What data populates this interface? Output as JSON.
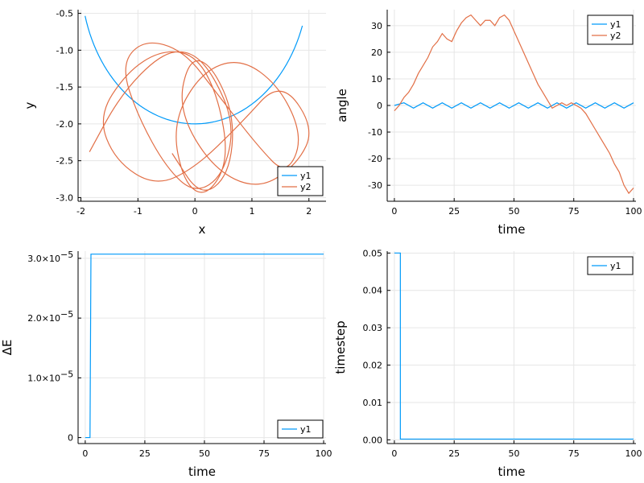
{
  "chart_data": [
    {
      "type": "line",
      "xlabel": "x",
      "ylabel": "y",
      "xlim": [
        -2.05,
        2.3
      ],
      "ylim": [
        -3.05,
        -0.45
      ],
      "xticks": [
        -2,
        -1,
        0,
        1,
        2
      ],
      "yticks": [
        -3.0,
        -2.5,
        -2.0,
        -1.5,
        -1.0,
        -0.5
      ],
      "xtick_labels": [
        "-2",
        "-1",
        "0",
        "1",
        "2"
      ],
      "ytick_labels": [
        "-3.0",
        "-2.5",
        "-2.0",
        "-1.5",
        "-1.0",
        "-0.5"
      ],
      "grid": true,
      "legend": "bottom-right",
      "series": [
        {
          "name": "y1",
          "color": "#009af9",
          "description_kind": "circle_arc",
          "x": [
            -1.9,
            -1.5,
            -1.0,
            -0.5,
            0.0,
            0.5,
            1.0,
            1.5,
            1.9
          ],
          "y": [
            -0.52,
            -1.2,
            -1.69,
            -1.92,
            -2.0,
            -1.92,
            -1.69,
            -1.2,
            -0.62
          ]
        },
        {
          "name": "y2",
          "color": "#e26f46",
          "x": [
            -1.85,
            -1.3,
            -0.6,
            -0.1,
            0.3,
            0.7,
            0.5,
            0.0,
            -0.5,
            -1.0,
            -1.3,
            -0.9,
            -0.2,
            0.4,
            1.1,
            1.6,
            1.9,
            1.5,
            0.8,
            0.1,
            -0.4,
            -0.2,
            0.2,
            0.6,
            0.4,
            0.0,
            -0.6,
            -1.2,
            -1.7,
            -1.4,
            -0.7,
            0.0,
            0.8,
            1.5,
            2.1,
            1.8,
            1.1,
            0.3,
            -0.3,
            -0.1,
            0.3,
            0.7,
            0.6,
            0.1,
            -0.4
          ],
          "y": [
            -2.38,
            -1.6,
            -1.05,
            -1.0,
            -1.3,
            -2.0,
            -2.7,
            -2.95,
            -2.6,
            -1.9,
            -1.2,
            -0.85,
            -1.0,
            -1.6,
            -2.3,
            -2.7,
            -2.2,
            -1.5,
            -1.1,
            -1.3,
            -2.0,
            -2.8,
            -3.0,
            -2.5,
            -1.6,
            -1.05,
            -1.0,
            -1.3,
            -1.9,
            -2.5,
            -2.85,
            -2.6,
            -2.0,
            -1.4,
            -2.05,
            -2.55,
            -2.9,
            -2.6,
            -1.8,
            -1.1,
            -1.2,
            -1.9,
            -2.7,
            -3.0,
            -2.4
          ]
        }
      ]
    },
    {
      "type": "line",
      "xlabel": "time",
      "ylabel": "angle",
      "xlim": [
        -3,
        101
      ],
      "ylim": [
        -36,
        36
      ],
      "xticks": [
        0,
        25,
        50,
        75,
        100
      ],
      "yticks": [
        -30,
        -20,
        -10,
        0,
        10,
        20,
        30
      ],
      "xtick_labels": [
        "0",
        "25",
        "50",
        "75",
        "100"
      ],
      "ytick_labels": [
        "-30",
        "-20",
        "-10",
        "0",
        "10",
        "20",
        "30"
      ],
      "grid": true,
      "legend": "top-right",
      "series": [
        {
          "name": "y1",
          "color": "#009af9",
          "x": [
            0,
            4,
            8,
            12,
            16,
            20,
            24,
            28,
            32,
            36,
            40,
            44,
            48,
            52,
            56,
            60,
            64,
            68,
            72,
            76,
            80,
            84,
            88,
            92,
            96,
            100
          ],
          "y": [
            0,
            1,
            -1,
            1,
            -1,
            1,
            -1,
            1,
            -1,
            1,
            -1,
            1,
            -1,
            1,
            -1,
            1,
            -1,
            1,
            -1,
            1,
            -1,
            1,
            -1,
            1,
            -1,
            1
          ]
        },
        {
          "name": "y2",
          "color": "#e26f46",
          "x": [
            0,
            2,
            4,
            6,
            8,
            10,
            12,
            14,
            16,
            18,
            20,
            22,
            24,
            26,
            28,
            30,
            32,
            34,
            36,
            38,
            40,
            42,
            44,
            46,
            48,
            50,
            52,
            54,
            56,
            58,
            60,
            62,
            64,
            66,
            68,
            70,
            72,
            74,
            76,
            78,
            80,
            82,
            84,
            86,
            88,
            90,
            92,
            94,
            96,
            98,
            100
          ],
          "y": [
            -2,
            0,
            3,
            5,
            8,
            12,
            15,
            18,
            22,
            24,
            27,
            25,
            24,
            28,
            31,
            33,
            34,
            32,
            30,
            32,
            32,
            30,
            33,
            34,
            32,
            28,
            24,
            20,
            16,
            12,
            8,
            5,
            2,
            -1,
            0,
            1,
            0,
            1,
            0,
            -1,
            -3,
            -6,
            -9,
            -12,
            -15,
            -18,
            -22,
            -25,
            -30,
            -33,
            -31
          ]
        }
      ]
    },
    {
      "type": "line",
      "xlabel": "time",
      "ylabel": "ΔE",
      "xlim": [
        -3,
        101
      ],
      "ylim": [
        -1e-06,
        3.12e-05
      ],
      "xticks": [
        0,
        25,
        50,
        75,
        100
      ],
      "yticks": [
        0,
        1e-05,
        2e-05,
        3e-05
      ],
      "xtick_labels": [
        "0",
        "25",
        "50",
        "75",
        "100"
      ],
      "ytick_labels": [
        "0",
        "1.0×10",
        "2.0×10",
        "3.0×10"
      ],
      "ytick_exponent": "−5",
      "grid": true,
      "legend": "bottom-right",
      "series": [
        {
          "name": "y1",
          "color": "#009af9",
          "x": [
            0,
            2,
            2.4,
            100
          ],
          "y": [
            0,
            0,
            3.07e-05,
            3.07e-05
          ]
        }
      ]
    },
    {
      "type": "line",
      "xlabel": "time",
      "ylabel": "timestep",
      "xlim": [
        -3,
        101
      ],
      "ylim": [
        -0.001,
        0.0505
      ],
      "xticks": [
        0,
        25,
        50,
        75,
        100
      ],
      "yticks": [
        0.0,
        0.01,
        0.02,
        0.03,
        0.04,
        0.05
      ],
      "xtick_labels": [
        "0",
        "25",
        "50",
        "75",
        "100"
      ],
      "ytick_labels": [
        "0.00",
        "0.01",
        "0.02",
        "0.03",
        "0.04",
        "0.05"
      ],
      "grid": true,
      "legend": "top-right",
      "series": [
        {
          "name": "y1",
          "color": "#009af9",
          "x": [
            0,
            2.5,
            2.5,
            100
          ],
          "y": [
            0.05,
            0.05,
            0.0002,
            0.0002
          ]
        }
      ]
    }
  ]
}
